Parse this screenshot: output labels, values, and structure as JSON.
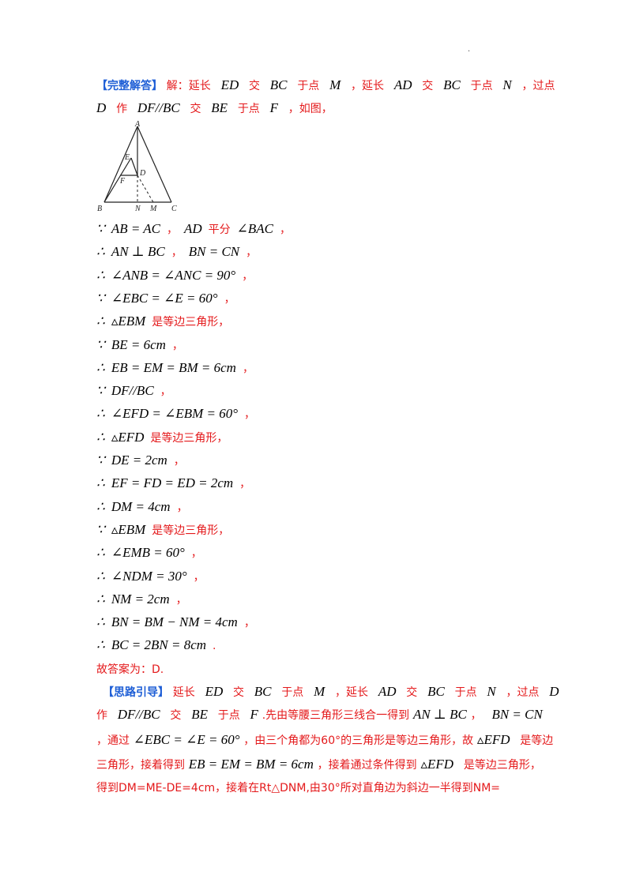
{
  "header": {
    "tag": "【完整解答】",
    "p1_a": "解：延长",
    "ED": "ED",
    "jiao": "交",
    "BC": "BC",
    "yu_dian": "于点",
    "M": "M",
    "comma_yanchang": "，延长",
    "AD": "AD",
    "N": "N",
    "comma_guodian": "，过点",
    "D": "D",
    "zuo": "作",
    "DFparBC": "DF//BC",
    "BE": "BE",
    "F": "F",
    "comma_rutu": "，如图，"
  },
  "figure": {
    "labels": {
      "A": "A",
      "E": "E",
      "D": "D",
      "F": "F",
      "B": "B",
      "N": "N",
      "M": "M",
      "C": "C"
    }
  },
  "steps": [
    {
      "sym": "∵",
      "math": "AB = AC",
      "text": "，",
      "math2": "AD",
      "text2": "平分",
      "math3": "∠BAC",
      "text3": "，"
    },
    {
      "sym": "∴",
      "math": "AN ⊥ BC",
      "text": "，",
      "math2": "BN = CN",
      "text2": "，",
      "math3": "",
      "text3": ""
    },
    {
      "sym": "∴",
      "math": "∠ANB = ∠ANC = 90°",
      "text": "，",
      "math2": "",
      "text2": "",
      "math3": "",
      "text3": ""
    },
    {
      "sym": "∵",
      "math": "∠EBC = ∠E = 60°",
      "text": "，",
      "math2": "",
      "text2": "",
      "math3": "",
      "text3": ""
    },
    {
      "sym": "∴",
      "math": "▵EBM",
      "text": "是等边三角形，",
      "math2": "",
      "text2": "",
      "math3": "",
      "text3": ""
    },
    {
      "sym": "∵",
      "math": "BE = 6cm",
      "text": "，",
      "math2": "",
      "text2": "",
      "math3": "",
      "text3": ""
    },
    {
      "sym": "∴",
      "math": "EB = EM = BM = 6cm",
      "text": "，",
      "math2": "",
      "text2": "",
      "math3": "",
      "text3": ""
    },
    {
      "sym": "∵",
      "math": "DF//BC",
      "text": "，",
      "math2": "",
      "text2": "",
      "math3": "",
      "text3": ""
    },
    {
      "sym": "∴",
      "math": "∠EFD = ∠EBM = 60°",
      "text": "，",
      "math2": "",
      "text2": "",
      "math3": "",
      "text3": ""
    },
    {
      "sym": "∴",
      "math": "▵EFD",
      "text": "是等边三角形，",
      "math2": "",
      "text2": "",
      "math3": "",
      "text3": ""
    },
    {
      "sym": "∵",
      "math": "DE = 2cm",
      "text": "，",
      "math2": "",
      "text2": "",
      "math3": "",
      "text3": ""
    },
    {
      "sym": "∴",
      "math": "EF = FD = ED = 2cm",
      "text": "，",
      "math2": "",
      "text2": "",
      "math3": "",
      "text3": ""
    },
    {
      "sym": "∴",
      "math": "DM = 4cm",
      "text": "，",
      "math2": "",
      "text2": "",
      "math3": "",
      "text3": ""
    },
    {
      "sym": "∵",
      "math": "▵EBM",
      "text": "是等边三角形，",
      "math2": "",
      "text2": "",
      "math3": "",
      "text3": ""
    },
    {
      "sym": "∴",
      "math": "∠EMB = 60°",
      "text": "，",
      "math2": "",
      "text2": "",
      "math3": "",
      "text3": ""
    },
    {
      "sym": "∴",
      "math": "∠NDM = 30°",
      "text": "，",
      "math2": "",
      "text2": "",
      "math3": "",
      "text3": ""
    },
    {
      "sym": "∴",
      "math": "NM = 2cm",
      "text": "，",
      "math2": "",
      "text2": "",
      "math3": "",
      "text3": ""
    },
    {
      "sym": "∴",
      "math": "BN = BM − NM = 4cm",
      "text": "，",
      "math2": "",
      "text2": "",
      "math3": "",
      "text3": ""
    },
    {
      "sym": "∴",
      "math": "BC = 2BN = 8cm",
      "text": ".",
      "math2": "",
      "text2": "",
      "math3": "",
      "text3": ""
    }
  ],
  "answer": "故答案为：D.",
  "guide": {
    "tag": "【思路引导】",
    "l1_a": "延长",
    "ED": "ED",
    "jiao": "交",
    "BC": "BC",
    "yu_dian": "于点",
    "M": "M",
    "comma_yanchang": "，延长",
    "AD": "AD",
    "N": "N",
    "comma_guodian": "，过点",
    "D": "D",
    "zuo": "作",
    "DFparBC": "DF//BC",
    "BE": "BE",
    "F": "F",
    "l2_text": ".先由等腰三角形三线合一得到",
    "AN_perp_BC": "AN ⊥ BC",
    "comma": "，",
    "BN_eq_CN": "BN = CN",
    "l3_a": "，通过",
    "EBC_eq": "∠EBC = ∠E = 60°",
    "l3_b": "，由三个角都为60°的三角形是等边三角形，故",
    "tri_EFD": "▵EFD",
    "l3_c": "是等边",
    "l4_a": "三角形，接着得到",
    "EB_eq": "EB = EM = BM = 6cm",
    "l4_b": "，接着通过条件得到",
    "l4_c": "是等边三角形，",
    "l5": "得到DM=ME-DE=4cm，接着在Rt△DNM,由30°所对直角边为斜边一半得到NM="
  }
}
